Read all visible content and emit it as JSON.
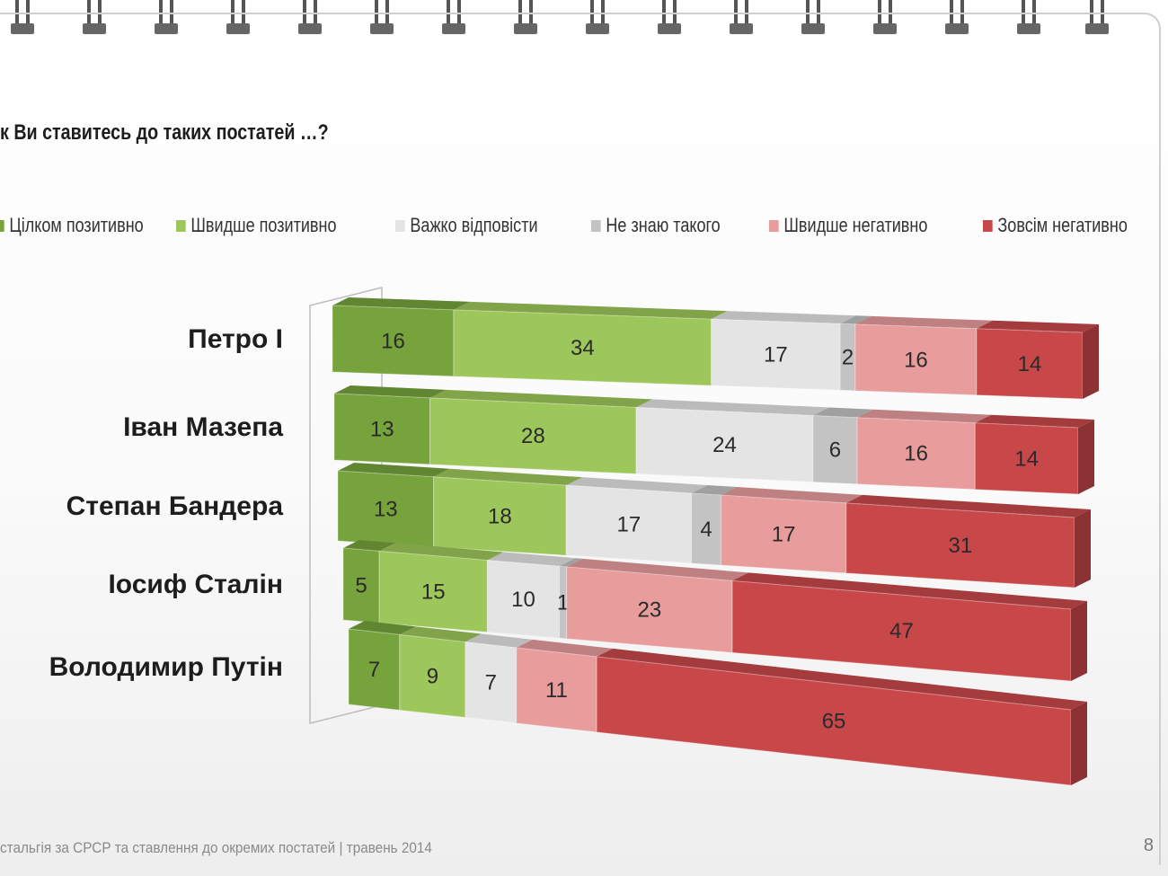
{
  "slide": {
    "title": "к Ви ставитесь до таких постатей …?",
    "footer": "стальгія за СРСР та ставлення до окремих постатей |   травень 2014",
    "page_number": "8"
  },
  "chart_data": {
    "type": "bar",
    "orientation": "horizontal",
    "stacked": true,
    "title": "к Ви ставитесь до таких постатей …?",
    "categories": [
      "Петро І",
      "Іван Мазепа",
      "Степан Бандера",
      "Іосиф Сталін",
      "Володимир Путін"
    ],
    "series": [
      {
        "name": "Цілком позитивно",
        "color": "#76a33c",
        "values": [
          16,
          13,
          13,
          5,
          7
        ]
      },
      {
        "name": "Швидше позитивно",
        "color": "#9dc75a",
        "values": [
          34,
          28,
          18,
          15,
          9
        ]
      },
      {
        "name": "Важко відповісти",
        "color": "#e4e4e4",
        "values": [
          17,
          24,
          17,
          10,
          7
        ]
      },
      {
        "name": "Не знаю такого",
        "color": "#c3c3c3",
        "values": [
          2,
          6,
          4,
          1,
          0
        ]
      },
      {
        "name": "Швидше негативно",
        "color": "#e89c9c",
        "values": [
          16,
          16,
          17,
          23,
          11
        ]
      },
      {
        "name": "Зовсім негативно",
        "color": "#c8484a",
        "values": [
          14,
          14,
          31,
          47,
          65
        ]
      }
    ],
    "xlim": [
      0,
      100
    ],
    "legend": "top"
  }
}
